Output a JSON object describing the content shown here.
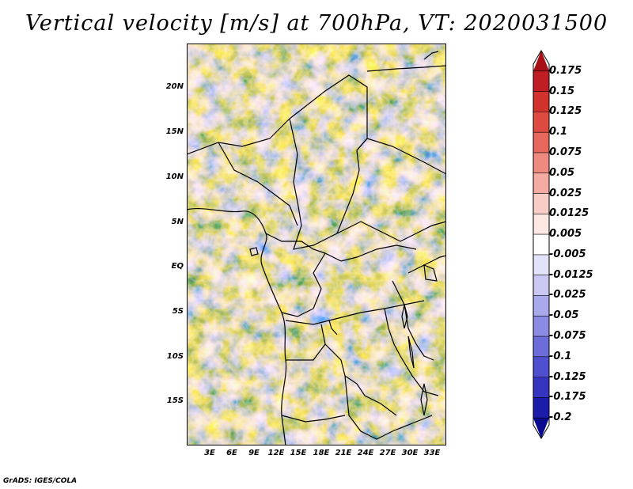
{
  "title": "Vertical velocity [m/s] at 700hPa, VT: 2020031500",
  "credit": "GrADS: IGES/COLA",
  "map": {
    "lat_labels": [
      "20N",
      "15N",
      "10N",
      "5N",
      "EQ",
      "5S",
      "10S",
      "15S"
    ],
    "lon_labels": [
      "3E",
      "6E",
      "9E",
      "12E",
      "15E",
      "18E",
      "21E",
      "24E",
      "27E",
      "30E",
      "33E"
    ],
    "lon_range": [
      0,
      35
    ],
    "lat_range": [
      -20,
      25
    ]
  },
  "colorbar": {
    "labels": [
      "0.175",
      "0.15",
      "0.125",
      "0.1",
      "0.075",
      "0.05",
      "0.025",
      "0.0125",
      "0.005",
      "-0.005",
      "-0.0125",
      "-0.025",
      "-0.05",
      "-0.075",
      "-0.1",
      "-0.125",
      "-0.175",
      "-0.2"
    ],
    "colors": [
      "#a50f15",
      "#c01e24",
      "#d2322c",
      "#de4a40",
      "#e6675c",
      "#ee8a80",
      "#f4aba2",
      "#f9ccc6",
      "#fde8e4",
      "#ffffff",
      "#e2e2f8",
      "#c8c8f2",
      "#a9a9ec",
      "#8b8be4",
      "#6d6dda",
      "#4f4fcf",
      "#3535c0",
      "#1c1cac",
      "#0a0a8e"
    ]
  }
}
